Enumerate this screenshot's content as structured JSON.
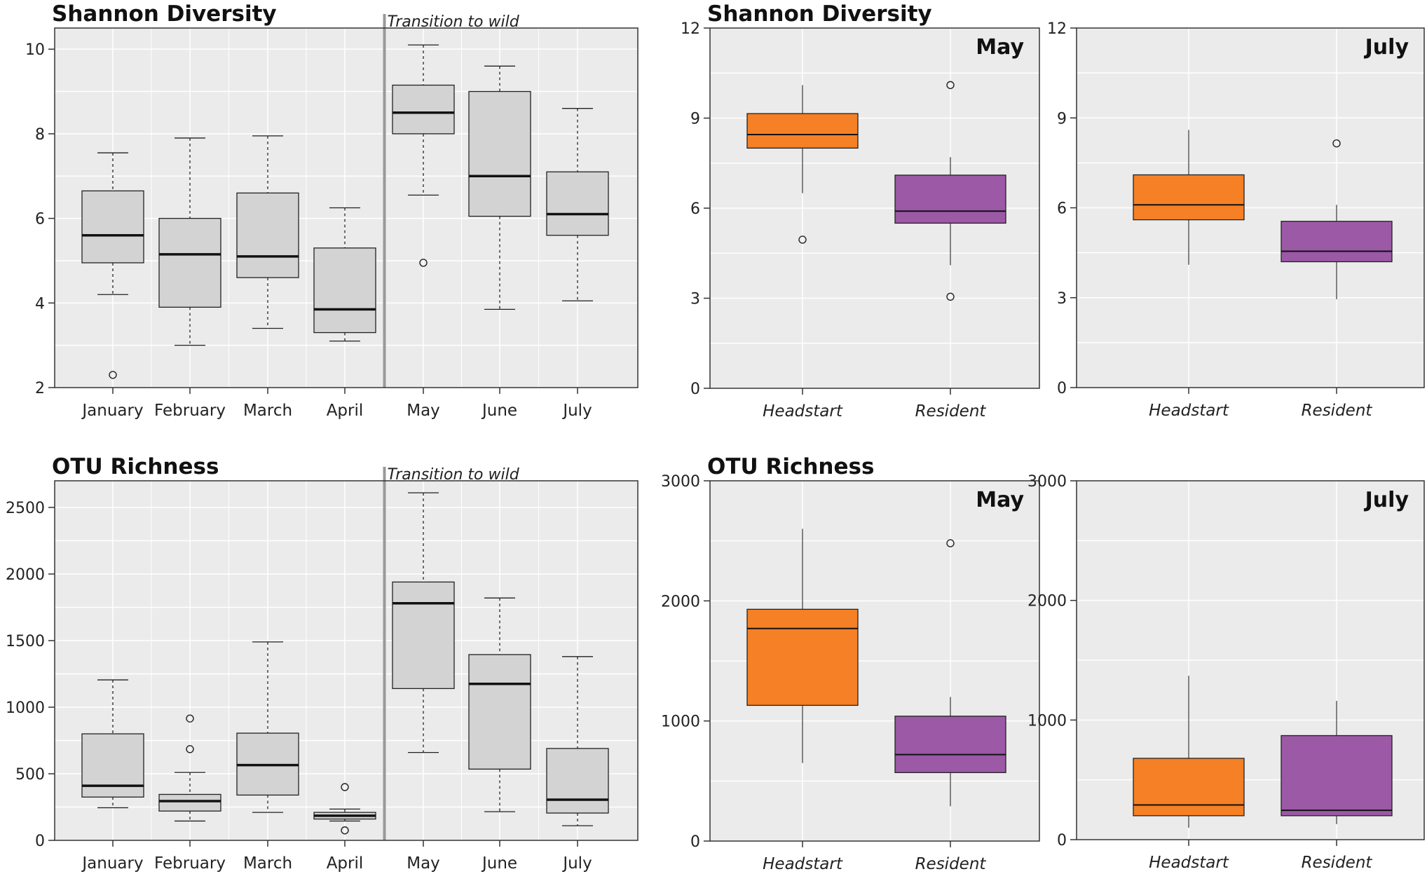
{
  "colors": {
    "panel_bg": "#ebebeb",
    "grid": "#ffffff",
    "box_fill_grey": "#d3d3d3",
    "headstart": "#f58025",
    "resident": "#9b59a6",
    "transition_line": "#999999"
  },
  "chart_data": [
    {
      "id": "shannon-monthly",
      "type": "box",
      "title": "Shannon Diversity",
      "annotation": "Transition to wild",
      "transition_after": "April",
      "ylim": [
        2,
        10.5
      ],
      "yticks": [
        2,
        4,
        6,
        8,
        10
      ],
      "categories": [
        "January",
        "February",
        "March",
        "April",
        "May",
        "June",
        "July"
      ],
      "boxes": [
        {
          "min": 4.2,
          "q1": 4.95,
          "median": 5.6,
          "q3": 6.65,
          "max": 7.55,
          "outliers": [
            2.3
          ]
        },
        {
          "min": 3.0,
          "q1": 3.9,
          "median": 5.15,
          "q3": 6.0,
          "max": 7.9,
          "outliers": []
        },
        {
          "min": 3.4,
          "q1": 4.6,
          "median": 5.1,
          "q3": 6.6,
          "max": 7.95,
          "outliers": []
        },
        {
          "min": 3.1,
          "q1": 3.3,
          "median": 3.85,
          "q3": 5.3,
          "max": 6.25,
          "outliers": []
        },
        {
          "min": 6.55,
          "q1": 8.0,
          "median": 8.5,
          "q3": 9.15,
          "max": 10.1,
          "outliers": [
            4.95
          ]
        },
        {
          "min": 3.85,
          "q1": 6.05,
          "median": 7.0,
          "q3": 9.0,
          "max": 9.6,
          "outliers": []
        },
        {
          "min": 4.05,
          "q1": 5.6,
          "median": 6.1,
          "q3": 7.1,
          "max": 8.6,
          "outliers": []
        }
      ]
    },
    {
      "id": "shannon-may",
      "type": "box",
      "title": "Shannon Diversity",
      "label": "May",
      "ylim": [
        0,
        12
      ],
      "yticks": [
        0,
        3,
        6,
        9,
        12
      ],
      "categories": [
        "Headstart",
        "Resident"
      ],
      "boxes": [
        {
          "min": 6.5,
          "q1": 8.0,
          "median": 8.45,
          "q3": 9.15,
          "max": 10.1,
          "outliers": [
            4.95
          ]
        },
        {
          "min": 4.1,
          "q1": 5.5,
          "median": 5.9,
          "q3": 7.1,
          "max": 7.7,
          "outliers": [
            10.1,
            3.05
          ]
        }
      ]
    },
    {
      "id": "shannon-july",
      "type": "box",
      "label": "July",
      "ylim": [
        0,
        12
      ],
      "yticks": [
        0,
        3,
        6,
        9,
        12
      ],
      "categories": [
        "Headstart",
        "Resident"
      ],
      "boxes": [
        {
          "min": 4.1,
          "q1": 5.6,
          "median": 6.1,
          "q3": 7.1,
          "max": 8.6,
          "outliers": []
        },
        {
          "min": 2.95,
          "q1": 4.2,
          "median": 4.55,
          "q3": 5.55,
          "max": 6.1,
          "outliers": [
            8.15
          ]
        }
      ]
    },
    {
      "id": "otu-monthly",
      "type": "box",
      "title": "OTU Richness",
      "annotation": "Transition to wild",
      "transition_after": "April",
      "ylim": [
        0,
        2700
      ],
      "yticks": [
        0,
        500,
        1000,
        1500,
        2000,
        2500
      ],
      "categories": [
        "January",
        "February",
        "March",
        "April",
        "May",
        "June",
        "July"
      ],
      "boxes": [
        {
          "min": 245,
          "q1": 325,
          "median": 410,
          "q3": 800,
          "max": 1205,
          "outliers": []
        },
        {
          "min": 145,
          "q1": 220,
          "median": 295,
          "q3": 345,
          "max": 510,
          "outliers": [
            915,
            685
          ]
        },
        {
          "min": 210,
          "q1": 340,
          "median": 565,
          "q3": 805,
          "max": 1490,
          "outliers": []
        },
        {
          "min": 145,
          "q1": 160,
          "median": 185,
          "q3": 210,
          "max": 235,
          "outliers": [
            400,
            75
          ]
        },
        {
          "min": 660,
          "q1": 1140,
          "median": 1780,
          "q3": 1940,
          "max": 2610,
          "outliers": []
        },
        {
          "min": 215,
          "q1": 535,
          "median": 1175,
          "q3": 1395,
          "max": 1820,
          "outliers": []
        },
        {
          "min": 110,
          "q1": 205,
          "median": 305,
          "q3": 690,
          "max": 1380,
          "outliers": []
        }
      ]
    },
    {
      "id": "otu-may",
      "type": "box",
      "title": "OTU Richness",
      "label": "May",
      "ylim": [
        0,
        3000
      ],
      "yticks": [
        0,
        1000,
        2000,
        3000
      ],
      "categories": [
        "Headstart",
        "Resident"
      ],
      "boxes": [
        {
          "min": 650,
          "q1": 1130,
          "median": 1770,
          "q3": 1930,
          "max": 2600,
          "outliers": []
        },
        {
          "min": 290,
          "q1": 570,
          "median": 720,
          "q3": 1040,
          "max": 1200,
          "outliers": [
            2480
          ]
        }
      ]
    },
    {
      "id": "otu-july",
      "type": "box",
      "label": "July",
      "ylim": [
        0,
        3000
      ],
      "yticks": [
        0,
        1000,
        2000,
        3000
      ],
      "categories": [
        "Headstart",
        "Resident"
      ],
      "boxes": [
        {
          "min": 100,
          "q1": 200,
          "median": 290,
          "q3": 680,
          "max": 1370,
          "outliers": []
        },
        {
          "min": 130,
          "q1": 200,
          "median": 245,
          "q3": 870,
          "max": 1160,
          "outliers": []
        }
      ]
    }
  ]
}
